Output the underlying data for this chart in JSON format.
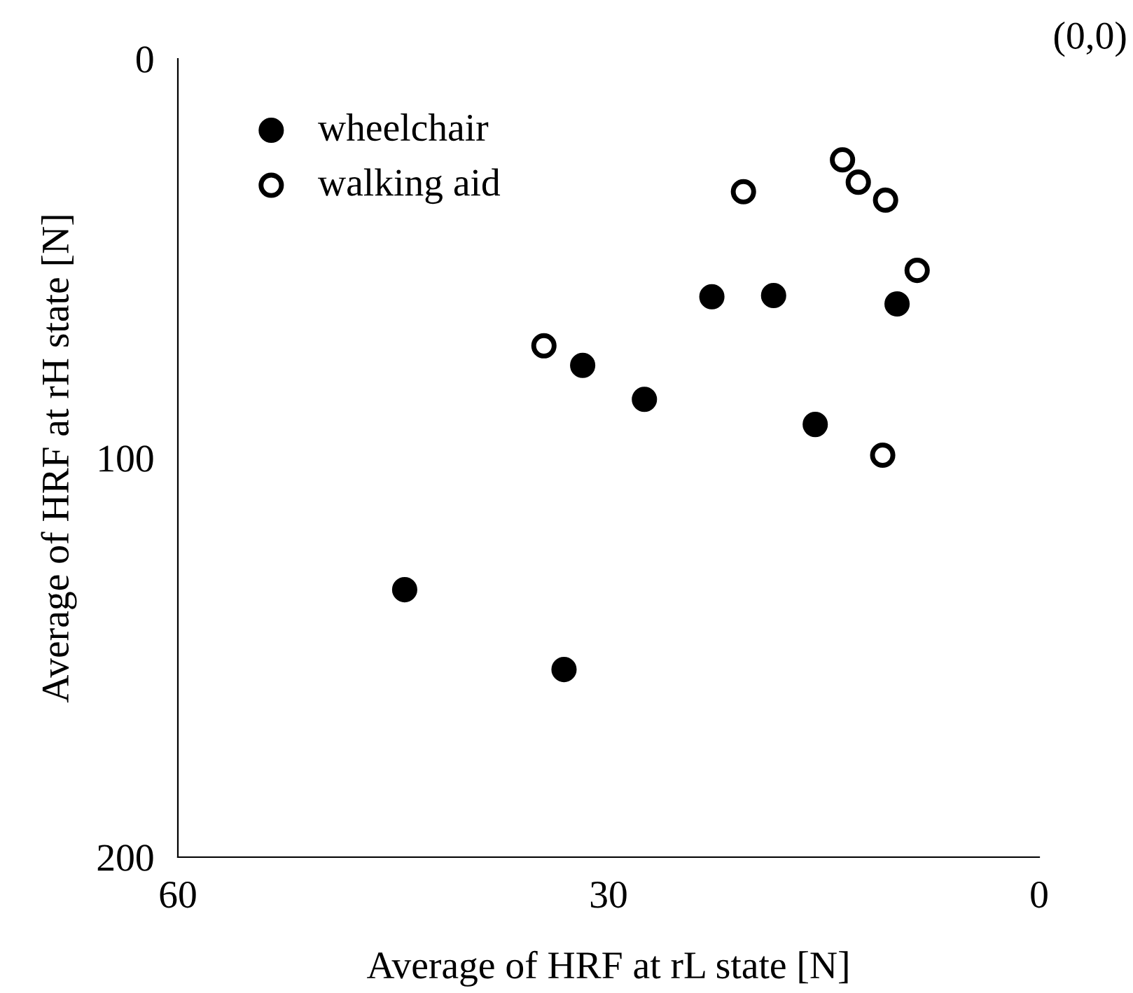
{
  "chart_data": {
    "type": "scatter",
    "xlabel": "Average of HRF at rL state [N]",
    "ylabel": "Average of HRF at rH state [N]",
    "xlim": [
      60,
      0
    ],
    "ylim": [
      200,
      0
    ],
    "xticks": [
      60,
      30,
      0
    ],
    "yticks": [
      0,
      100,
      200
    ],
    "grid": false,
    "legend": "top left",
    "marker": "circle",
    "annotations": [
      "(0,0)"
    ],
    "series": [
      {
        "name": "wheelchair",
        "color": "#000000",
        "x": [
          22.8,
          18.5,
          9.9,
          31.8,
          27.5,
          15.6,
          44.2,
          33.1
        ],
        "values": [
          59.6,
          59.3,
          61.4,
          76.8,
          85.3,
          91.6,
          133,
          153
        ]
      },
      {
        "name": "walking aid",
        "color": "#ffffff",
        "x": [
          20.6,
          13.7,
          12.6,
          10.7,
          8.5,
          34.5,
          10.9
        ],
        "values": [
          33.3,
          25.3,
          30.9,
          35.4,
          53,
          71.9,
          99.3
        ]
      }
    ]
  }
}
